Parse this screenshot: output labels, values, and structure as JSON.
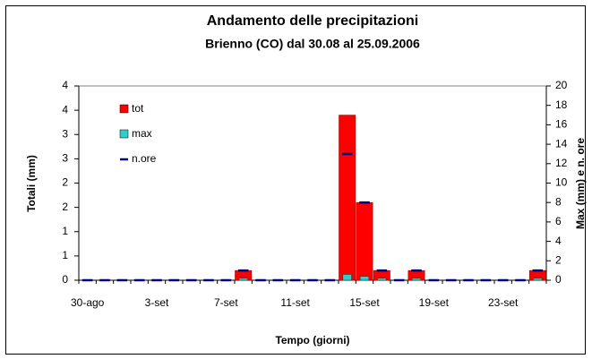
{
  "chart_data": {
    "type": "bar",
    "title": "Andamento delle precipitazioni",
    "subtitle": "Brienno (CO) dal 30.08 al 25.09.2006",
    "x_label": "Tempo (giorni)",
    "y_label": "Totali (mm)",
    "y2_label": "Max (mm) e n. ore",
    "categories": [
      "30-ago",
      null,
      null,
      null,
      "3-set",
      null,
      null,
      null,
      "7-set",
      null,
      null,
      null,
      "11-set",
      null,
      null,
      null,
      "15-set",
      null,
      null,
      null,
      "19-set",
      null,
      null,
      null,
      "23-set",
      null,
      null
    ],
    "series": [
      {
        "name": "tot",
        "color": "#ff0000",
        "values": [
          0,
          0,
          0,
          0,
          0,
          0,
          0,
          0,
          0,
          0.2,
          0,
          0,
          0,
          0,
          0,
          3.4,
          1.6,
          0.2,
          0,
          0.2,
          0,
          0,
          0,
          0,
          0,
          0,
          0.2
        ]
      },
      {
        "name": "max",
        "color": "#33cccc",
        "axis": "y2",
        "values": [
          0,
          0,
          0,
          0,
          0,
          0,
          0,
          0,
          0,
          0.2,
          0,
          0,
          0,
          0,
          0,
          0.6,
          0.4,
          0.2,
          0,
          0.2,
          0,
          0,
          0,
          0,
          0,
          0,
          0.2
        ]
      },
      {
        "name": "n.ore",
        "color": "#000080",
        "axis": "y2",
        "values": [
          0,
          0,
          0,
          0,
          0,
          0,
          0,
          0,
          0,
          1,
          0,
          0,
          0,
          0,
          0,
          13,
          8,
          1,
          0,
          1,
          0,
          0,
          0,
          0,
          0,
          0,
          1
        ]
      }
    ],
    "ylim": [
      0,
      4
    ],
    "yticks": [
      0,
      {
        "value": 0.5,
        "label": "1"
      },
      1,
      {
        "value": 1.5,
        "label": "2"
      },
      2,
      {
        "value": 2.5,
        "label": "3"
      },
      3,
      {
        "value": 3.5,
        "label": "4"
      },
      4
    ],
    "y2lim": [
      0,
      20
    ],
    "y2ticks": [
      0,
      2,
      4,
      6,
      8,
      10,
      12,
      14,
      16,
      18,
      20
    ],
    "grid": false
  }
}
